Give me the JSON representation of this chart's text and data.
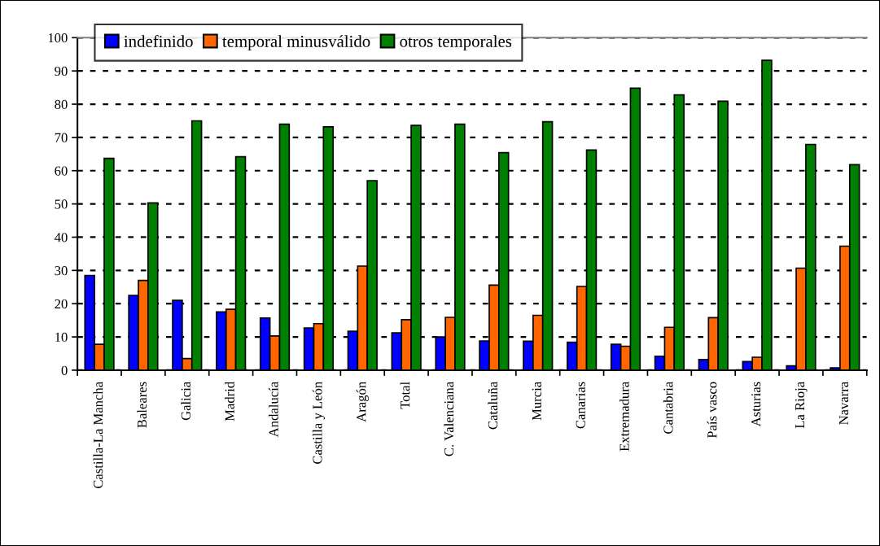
{
  "chart_data": {
    "type": "bar",
    "categories": [
      "Castilla-La Mancha",
      "Baleares",
      "Galicia",
      "Madrid",
      "Andalucía",
      "Castilla y León",
      "Aragón",
      "Total",
      "C. Valenciana",
      "Cataluña",
      "Murcia",
      "Canarias",
      "Extremadura",
      "Cantabria",
      "País vasco",
      "Asturias",
      "La Rioja",
      "Navarra"
    ],
    "series": [
      {
        "name": "indefinido",
        "color": "#0000ff",
        "values": [
          28.5,
          22.5,
          21,
          17.5,
          15.7,
          12.7,
          11.7,
          11.2,
          10,
          8.8,
          8.7,
          8.4,
          7.8,
          4.2,
          3.2,
          2.6,
          1.3,
          0.7
        ]
      },
      {
        "name": "temporal minusválido",
        "color": "#ff6600",
        "values": [
          7.8,
          27,
          3.5,
          18.3,
          10.3,
          14,
          31.3,
          15.2,
          15.9,
          25.6,
          16.5,
          25.2,
          7.2,
          12.9,
          15.8,
          3.9,
          30.7,
          37.3
        ]
      },
      {
        "name": "otros temporales",
        "color": "#008000",
        "values": [
          63.7,
          50.3,
          75,
          64.2,
          74,
          73.2,
          57,
          73.6,
          74,
          65.4,
          74.7,
          66.2,
          84.8,
          82.8,
          80.9,
          93.2,
          67.9,
          61.8
        ]
      }
    ],
    "ylim": [
      0,
      100
    ],
    "yticks": [
      0,
      10,
      20,
      30,
      40,
      50,
      60,
      70,
      80,
      90,
      100
    ],
    "grid": "y",
    "line_style": "dashed",
    "legend": "top left"
  }
}
